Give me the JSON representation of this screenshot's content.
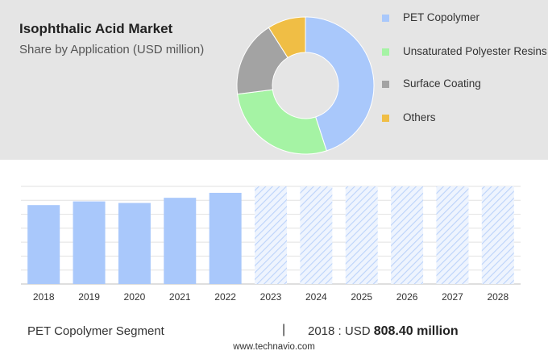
{
  "header": {
    "title": "Isophthalic Acid Market",
    "subtitle": "Share by Application (USD million)"
  },
  "chart_data": [
    {
      "type": "pie",
      "variant": "donut",
      "categories": [
        "PET Copolymer",
        "Unsaturated Polyester Resins",
        "Surface Coating",
        "Others"
      ],
      "values": [
        45,
        28,
        18,
        9
      ],
      "colors": [
        "#a9c8fb",
        "#a5f3a4",
        "#a3a3a3",
        "#f0be45"
      ],
      "legend": "right"
    },
    {
      "type": "bar",
      "categories": [
        "2018",
        "2019",
        "2020",
        "2021",
        "2022",
        "2023",
        "2024",
        "2025",
        "2026",
        "2027",
        "2028"
      ],
      "values": [
        808.4,
        846,
        830,
        883,
        934,
        1000,
        1000,
        1000,
        1000,
        1000,
        1000
      ],
      "forecast_from": "2023",
      "ylim": [
        0,
        1000
      ],
      "grid": true,
      "bar_color": "#a9c8fb",
      "forecast_pattern": "hatched"
    }
  ],
  "footer": {
    "segment": "PET Copolymer Segment",
    "separator": "|",
    "year_label": "2018 : USD ",
    "value_label": "808.40 million",
    "source": "www.technavio.com"
  }
}
